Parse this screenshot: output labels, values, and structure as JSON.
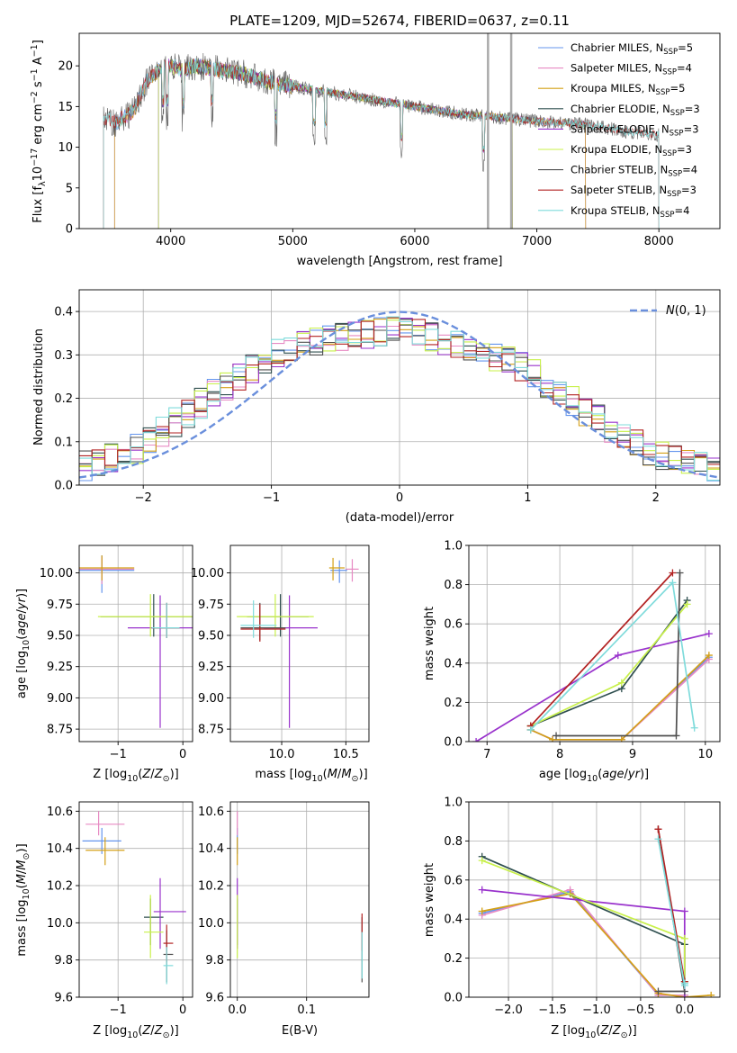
{
  "colors": [
    "#6495ed",
    "#e78ac3",
    "#d4a017",
    "#2f4f4f",
    "#9932cc",
    "#c8f04a",
    "#505050",
    "#b22222",
    "#7fdbdb"
  ],
  "chart_data": [
    {
      "id": "spectrum",
      "type": "line",
      "title": "PLATE=1209, MJD=52674, FIBERID=0637, z=0.11",
      "xlabel": "wavelength [Angstrom, rest frame]",
      "ylabel": "Flux [f_λ10^-17 erg cm^-2 s^-1 A^-1]",
      "xlim": [
        3250,
        8500
      ],
      "ylim": [
        0,
        24
      ],
      "xticks": [
        4000,
        5000,
        6000,
        7000,
        8000
      ],
      "yticks": [
        0,
        5,
        10,
        15,
        20
      ],
      "grid": false,
      "legend_position": "top-right",
      "data_envelope": {
        "x": [
          3450,
          3550,
          3700,
          3800,
          3900,
          4000,
          4100,
          4200,
          4400,
          4600,
          4800,
          5000,
          5200,
          5400,
          5600,
          5800,
          6000,
          6200,
          6400,
          6600,
          6800,
          7000,
          7200,
          7400,
          7700,
          8000
        ],
        "y": [
          13.5,
          13.0,
          14.5,
          18.0,
          19.5,
          20.0,
          19.5,
          20.0,
          19.5,
          19.0,
          18.0,
          17.5,
          17.0,
          16.5,
          16.0,
          15.5,
          15.0,
          14.5,
          14.0,
          13.8,
          13.5,
          13.2,
          13.0,
          12.8,
          12.0,
          11.5
        ]
      },
      "series": [
        {
          "name": "Chabrier MILES, N_SSP=5",
          "x_range": [
            3540,
            7400
          ]
        },
        {
          "name": "Salpeter MILES, N_SSP=4",
          "x_range": [
            3540,
            7400
          ]
        },
        {
          "name": "Kroupa MILES, N_SSP=5",
          "x_range": [
            3540,
            7400
          ]
        },
        {
          "name": "Chabrier ELODIE, N_SSP=3",
          "x_range": [
            3900,
            6800
          ]
        },
        {
          "name": "Salpeter ELODIE, N_SSP=3",
          "x_range": [
            3900,
            6800
          ]
        },
        {
          "name": "Kroupa ELODIE, N_SSP=3",
          "x_range": [
            3900,
            6800
          ]
        },
        {
          "name": "Chabrier STELIB, N_SSP=4",
          "x_range": [
            3450,
            8000
          ]
        },
        {
          "name": "Salpeter STELIB, N_SSP=3",
          "x_range": [
            3450,
            8000
          ]
        },
        {
          "name": "Kroupa STELIB, N_SSP=4",
          "x_range": [
            3450,
            8000
          ]
        }
      ]
    },
    {
      "id": "residuals",
      "type": "line",
      "xlabel": "(data-model)/error",
      "ylabel": "Normed distribution",
      "xlim": [
        -2.5,
        2.5
      ],
      "ylim": [
        0,
        0.45
      ],
      "xticks": [
        -2,
        -1,
        0,
        1,
        2
      ],
      "yticks": [
        0.0,
        0.1,
        0.2,
        0.3,
        0.4
      ],
      "grid": true,
      "legend_position": "top-right",
      "legend": [
        "N(0,1)"
      ],
      "histogram_bin_width": 0.1,
      "histogram_profile": {
        "x": [
          -2.5,
          -2.0,
          -1.5,
          -1.0,
          -0.5,
          0.0,
          0.5,
          1.0,
          1.5,
          2.0,
          2.5
        ],
        "y": [
          0.04,
          0.09,
          0.2,
          0.3,
          0.34,
          0.36,
          0.32,
          0.27,
          0.16,
          0.07,
          0.03
        ]
      },
      "reference_curve": "standard normal density"
    },
    {
      "id": "age-vs-Z",
      "type": "scatter",
      "xlabel": "Z [log10(Z/Z⊙)]",
      "ylabel": "age  [log10(age/yr)]",
      "xlim": [
        -1.6,
        0.15
      ],
      "ylim": [
        8.65,
        10.22
      ],
      "xticks": [
        -1,
        0
      ],
      "yticks": [
        8.75,
        9.0,
        9.25,
        9.5,
        9.75,
        10.0
      ],
      "grid": true,
      "points": [
        {
          "x": -1.25,
          "xerr": [
            1.3,
            0.5
          ],
          "y": 10.02,
          "yerr": [
            0.18,
            0.12
          ]
        },
        {
          "x": -1.25,
          "xerr": [
            1.3,
            0.5
          ],
          "y": 10.03,
          "yerr": [
            0.12,
            0.1
          ]
        },
        {
          "x": -1.25,
          "xerr": [
            1.3,
            0.5
          ],
          "y": 10.04,
          "yerr": [
            0.1,
            0.1
          ]
        },
        {
          "x": -0.45,
          "xerr": [
            0.82,
            0.72
          ],
          "y": 9.65,
          "yerr": [
            0.16,
            0.18
          ]
        },
        {
          "x": -0.35,
          "xerr": [
            0.5,
            0.72
          ],
          "y": 9.56,
          "yerr": [
            0.8,
            0.26
          ]
        },
        {
          "x": -0.5,
          "xerr": [
            0.81,
            0.8
          ],
          "y": 9.65,
          "yerr": [
            0.16,
            0.18
          ]
        },
        {
          "x": -0.25,
          "xerr": [
            0.23,
            0.2
          ],
          "y": 9.56,
          "yerr": [
            0.08,
            0.2
          ]
        },
        {
          "x": -0.25,
          "xerr": [
            0.23,
            0.2
          ],
          "y": 9.56,
          "yerr": [
            0.08,
            0.2
          ]
        },
        {
          "x": -0.25,
          "xerr": [
            0.23,
            0.2
          ],
          "y": 9.56,
          "yerr": [
            0.08,
            0.2
          ]
        }
      ]
    },
    {
      "id": "age-vs-mass",
      "type": "scatter",
      "xlabel": "mass [log10(M/M⊙)]",
      "xlim": [
        9.6,
        10.68
      ],
      "ylim": [
        8.65,
        10.22
      ],
      "xticks": [
        10.0,
        10.5
      ],
      "yticks": [
        8.75,
        9.0,
        9.25,
        9.5,
        9.75,
        10.0
      ],
      "grid": true,
      "points": [
        {
          "x": 10.45,
          "xerr": [
            0.07,
            0.06
          ],
          "y": 10.02,
          "yerr": [
            0.1,
            0.08
          ]
        },
        {
          "x": 10.55,
          "xerr": [
            0.05,
            0.05
          ],
          "y": 10.03,
          "yerr": [
            0.1,
            0.08
          ]
        },
        {
          "x": 10.4,
          "xerr": [
            0.03,
            0.09
          ],
          "y": 10.04,
          "yerr": [
            0.1,
            0.08
          ]
        },
        {
          "x": 9.99,
          "xerr": [
            0.26,
            0.22
          ],
          "y": 9.65,
          "yerr": [
            0.16,
            0.18
          ]
        },
        {
          "x": 10.06,
          "xerr": [
            0.2,
            0.22
          ],
          "y": 9.56,
          "yerr": [
            0.8,
            0.26
          ]
        },
        {
          "x": 9.95,
          "xerr": [
            0.3,
            0.3
          ],
          "y": 9.65,
          "yerr": [
            0.16,
            0.18
          ]
        },
        {
          "x": 9.83,
          "xerr": [
            0.15,
            0.2
          ],
          "y": 9.56,
          "yerr": [
            0.1,
            0.2
          ]
        },
        {
          "x": 9.83,
          "xerr": [
            0.15,
            0.2
          ],
          "y": 9.55,
          "yerr": [
            0.1,
            0.2
          ]
        },
        {
          "x": 9.78,
          "xerr": [
            0.1,
            0.18
          ],
          "y": 9.58,
          "yerr": [
            0.1,
            0.2
          ]
        }
      ]
    },
    {
      "id": "weight-vs-age",
      "type": "line",
      "xlabel": "age  [log10(age/yr)]",
      "ylabel": "mass weight",
      "xlim": [
        6.75,
        10.2
      ],
      "ylim": [
        0,
        1
      ],
      "xticks": [
        7,
        8,
        9,
        10
      ],
      "yticks": [
        0.0,
        0.2,
        0.4,
        0.6,
        0.8,
        1.0
      ],
      "grid": true,
      "series": [
        {
          "x": [
            7.6,
            7.9,
            8.85,
            10.05
          ],
          "y": [
            0.06,
            0.01,
            0.01,
            0.43
          ]
        },
        {
          "x": [
            7.6,
            7.9,
            8.85,
            10.05
          ],
          "y": [
            0.06,
            0.01,
            0.01,
            0.42
          ]
        },
        {
          "x": [
            7.6,
            7.9,
            8.85,
            10.05
          ],
          "y": [
            0.06,
            0.01,
            0.01,
            0.44
          ]
        },
        {
          "x": [
            7.6,
            8.85,
            9.75
          ],
          "y": [
            0.08,
            0.27,
            0.72
          ]
        },
        {
          "x": [
            6.85,
            8.8,
            10.05
          ],
          "y": [
            0.0,
            0.44,
            0.55
          ]
        },
        {
          "x": [
            7.6,
            8.85,
            9.75
          ],
          "y": [
            0.08,
            0.3,
            0.7
          ]
        },
        {
          "x": [
            7.95,
            9.6,
            9.65
          ],
          "y": [
            0.03,
            0.03,
            0.86
          ]
        },
        {
          "x": [
            7.6,
            9.55
          ],
          "y": [
            0.08,
            0.86
          ]
        },
        {
          "x": [
            7.6,
            9.55,
            9.85
          ],
          "y": [
            0.06,
            0.81,
            0.07
          ]
        }
      ]
    },
    {
      "id": "mass-vs-Z",
      "type": "scatter",
      "xlabel": "Z [log10(Z/Z⊙)]",
      "ylabel": "mass [log10(M/M⊙)]",
      "xlim": [
        -1.6,
        0.15
      ],
      "ylim": [
        9.6,
        10.65
      ],
      "xticks": [
        -1,
        0
      ],
      "yticks": [
        9.6,
        9.8,
        10.0,
        10.2,
        10.4,
        10.6
      ],
      "grid": true,
      "points": [
        {
          "x": -1.25,
          "xerr": [
            0.3,
            0.3
          ],
          "y": 10.44,
          "yerr": [
            0.07,
            0.07
          ]
        },
        {
          "x": -1.3,
          "xerr": [
            0.2,
            0.4
          ],
          "y": 10.53,
          "yerr": [
            0.06,
            0.07
          ]
        },
        {
          "x": -1.2,
          "xerr": [
            0.3,
            0.3
          ],
          "y": 10.39,
          "yerr": [
            0.08,
            0.07
          ]
        },
        {
          "x": -0.5,
          "xerr": [
            0.1,
            0.2
          ],
          "y": 10.03,
          "yerr": [
            0.15,
            0.1
          ]
        },
        {
          "x": -0.35,
          "xerr": [
            0.1,
            0.4
          ],
          "y": 10.06,
          "yerr": [
            0.2,
            0.18
          ]
        },
        {
          "x": -0.5,
          "xerr": [
            0.1,
            0.2
          ],
          "y": 9.95,
          "yerr": [
            0.14,
            0.2
          ]
        },
        {
          "x": -0.25,
          "xerr": [
            0.05,
            0.1
          ],
          "y": 9.83,
          "yerr": [
            0.15,
            0.13
          ]
        },
        {
          "x": -0.25,
          "xerr": [
            0.05,
            0.1
          ],
          "y": 9.89,
          "yerr": [
            0.1,
            0.1
          ]
        },
        {
          "x": -0.25,
          "xerr": [
            0.05,
            0.1
          ],
          "y": 9.77,
          "yerr": [
            0.1,
            0.1
          ]
        }
      ]
    },
    {
      "id": "mass-vs-ebv",
      "type": "scatter",
      "xlabel": "E(B-V)",
      "xlim": [
        -0.01,
        0.19
      ],
      "ylim": [
        9.6,
        10.65
      ],
      "xticks": [
        0.0,
        0.1
      ],
      "yticks": [
        9.6,
        9.8,
        10.0,
        10.2,
        10.4,
        10.6
      ],
      "grid": true,
      "points": [
        {
          "x": 0.0,
          "y": 10.44,
          "yerr": [
            0.07,
            0.07
          ]
        },
        {
          "x": 0.0,
          "y": 10.53,
          "yerr": [
            0.06,
            0.07
          ]
        },
        {
          "x": 0.0,
          "y": 10.39,
          "yerr": [
            0.08,
            0.07
          ]
        },
        {
          "x": 0.0,
          "y": 10.03,
          "yerr": [
            0.15,
            0.1
          ]
        },
        {
          "x": 0.0,
          "y": 10.06,
          "yerr": [
            0.2,
            0.18
          ]
        },
        {
          "x": 0.0,
          "y": 9.95,
          "yerr": [
            0.14,
            0.2
          ]
        },
        {
          "x": 0.18,
          "y": 9.83,
          "yerr": [
            0.15,
            0.2
          ]
        },
        {
          "x": 0.18,
          "y": 9.95,
          "yerr": [
            0.1,
            0.1
          ]
        },
        {
          "x": 0.18,
          "y": 9.8,
          "yerr": [
            0.1,
            0.15
          ]
        }
      ]
    },
    {
      "id": "weight-vs-Z",
      "type": "line",
      "xlabel": "Z [log10(Z/Z⊙)]",
      "ylabel": "mass weight",
      "xlim": [
        -2.45,
        0.4
      ],
      "ylim": [
        0,
        1
      ],
      "xticks": [
        -2.0,
        -1.5,
        -1.0,
        -0.5,
        0.0
      ],
      "yticks": [
        0.0,
        0.2,
        0.4,
        0.6,
        0.8,
        1.0
      ],
      "grid": true,
      "series": [
        {
          "x": [
            -2.3,
            -1.3,
            -0.3,
            0.0
          ],
          "y": [
            0.43,
            0.54,
            0.01,
            0.01
          ]
        },
        {
          "x": [
            -2.3,
            -1.3,
            -0.3,
            0.0
          ],
          "y": [
            0.42,
            0.55,
            0.01,
            0.01
          ]
        },
        {
          "x": [
            -2.3,
            -1.3,
            -0.3,
            0.0,
            0.3
          ],
          "y": [
            0.44,
            0.53,
            0.02,
            0.0,
            0.01
          ]
        },
        {
          "x": [
            -2.3,
            0.0,
            0.0
          ],
          "y": [
            0.72,
            0.27,
            0.08
          ]
        },
        {
          "x": [
            -2.3,
            0.0,
            0.0
          ],
          "y": [
            0.55,
            0.44,
            0.0
          ]
        },
        {
          "x": [
            -2.3,
            0.0,
            0.0
          ],
          "y": [
            0.7,
            0.3,
            0.08
          ]
        },
        {
          "x": [
            -0.3,
            0.0,
            -0.3
          ],
          "y": [
            0.86,
            0.03,
            0.03
          ]
        },
        {
          "x": [
            -0.3,
            -0.3,
            0.0
          ],
          "y": [
            0.86,
            0.86,
            0.08
          ]
        },
        {
          "x": [
            -0.3,
            0.0,
            0.0
          ],
          "y": [
            0.81,
            0.06,
            0.07
          ]
        }
      ]
    }
  ]
}
